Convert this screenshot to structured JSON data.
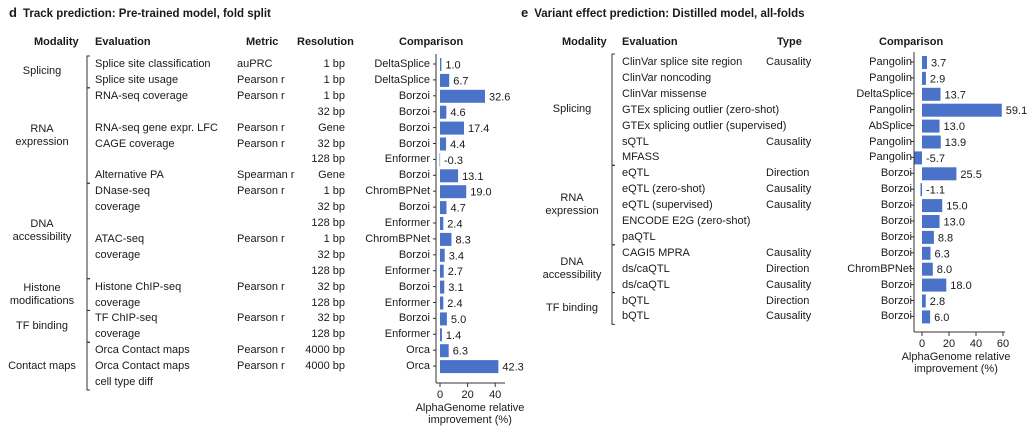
{
  "panel_d": {
    "letter": "d",
    "title": "Track prediction: Pre-trained model, fold split",
    "headers": {
      "modality": "Modality",
      "evaluation": "Evaluation",
      "metric": "Metric",
      "resolution": "Resolution",
      "comparison": "Comparison"
    },
    "modalities": [
      {
        "lines": [
          "Splicing"
        ]
      },
      {
        "lines": [
          "RNA",
          "expression"
        ]
      },
      {
        "lines": [
          "DNA",
          "accessibility"
        ]
      },
      {
        "lines": [
          "Histone",
          "modifications"
        ]
      },
      {
        "lines": [
          "TF binding"
        ]
      },
      {
        "lines": [
          "Contact maps"
        ]
      }
    ],
    "rows": [
      {
        "evaluation": "Splice site classification",
        "metric": "auPRC",
        "resolution": "1 bp",
        "model": "DeltaSplice",
        "value": 1.0,
        "label": "1.0"
      },
      {
        "evaluation": "Splice site usage",
        "metric": "Pearson r",
        "resolution": "1 bp",
        "model": "DeltaSplice",
        "value": 6.7,
        "label": "6.7"
      },
      {
        "evaluation": "RNA-seq coverage",
        "metric": "Pearson r",
        "resolution": "1 bp",
        "model": "Borzoi",
        "value": 32.6,
        "label": "32.6"
      },
      {
        "evaluation": "",
        "metric": "",
        "resolution": "32 bp",
        "model": "Borzoi",
        "value": 4.6,
        "label": "4.6"
      },
      {
        "evaluation": "RNA-seq gene expr. LFC",
        "metric": "Pearson r",
        "resolution": "Gene",
        "model": "Borzoi",
        "value": 17.4,
        "label": "17.4"
      },
      {
        "evaluation": "CAGE coverage",
        "metric": "Pearson r",
        "resolution": "32 bp",
        "model": "Borzoi",
        "value": 4.4,
        "label": "4.4"
      },
      {
        "evaluation": "",
        "metric": "",
        "resolution": "128 bp",
        "model": "Enformer",
        "value": -0.3,
        "label": "-0.3"
      },
      {
        "evaluation": "Alternative PA",
        "metric": "Spearman r",
        "resolution": "Gene",
        "model": "Borzoi",
        "value": 13.1,
        "label": "13.1"
      },
      {
        "evaluation": "DNase-seq",
        "metric": "Pearson r",
        "resolution": "1 bp",
        "model": "ChromBPNet",
        "value": 19.0,
        "label": "19.0"
      },
      {
        "evaluation": "coverage",
        "metric": "",
        "resolution": "32 bp",
        "model": "Borzoi",
        "value": 4.7,
        "label": "4.7"
      },
      {
        "evaluation": "",
        "metric": "",
        "resolution": "128 bp",
        "model": "Enformer",
        "value": 2.4,
        "label": "2.4"
      },
      {
        "evaluation": "ATAC-seq",
        "metric": "Pearson r",
        "resolution": "1 bp",
        "model": "ChromBPNet",
        "value": 8.3,
        "label": "8.3"
      },
      {
        "evaluation": "coverage",
        "metric": "",
        "resolution": "32 bp",
        "model": "Borzoi",
        "value": 3.4,
        "label": "3.4"
      },
      {
        "evaluation": "",
        "metric": "",
        "resolution": "128 bp",
        "model": "Enformer",
        "value": 2.7,
        "label": "2.7"
      },
      {
        "evaluation": "Histone ChIP-seq",
        "metric": "Pearson r",
        "resolution": "32 bp",
        "model": "Borzoi",
        "value": 3.1,
        "label": "3.1"
      },
      {
        "evaluation": "coverage",
        "metric": "",
        "resolution": "128 bp",
        "model": "Enformer",
        "value": 2.4,
        "label": "2.4"
      },
      {
        "evaluation": "TF ChIP-seq",
        "metric": "Pearson r",
        "resolution": "32 bp",
        "model": "Borzoi",
        "value": 5.0,
        "label": "5.0"
      },
      {
        "evaluation": "coverage",
        "metric": "",
        "resolution": "128 bp",
        "model": "Enformer",
        "value": 1.4,
        "label": "1.4"
      },
      {
        "evaluation": "Orca Contact maps",
        "metric": "Pearson r",
        "resolution": "4000 bp",
        "model": "Orca",
        "value": 6.3,
        "label": "6.3"
      },
      {
        "evaluation": "Orca Contact maps",
        "metric": "Pearson r",
        "resolution": "4000 bp",
        "model": "Orca",
        "value": 42.3,
        "label": "42.3"
      },
      {
        "evaluation": "cell type diff",
        "metric": "",
        "resolution": "",
        "model": "",
        "value": null,
        "label": ""
      }
    ],
    "xaxis": {
      "ticks": [
        "0",
        "20",
        "40"
      ],
      "label_lines": [
        "AlphaGenome relative",
        "improvement (%)"
      ]
    }
  },
  "panel_e": {
    "letter": "e",
    "title": "Variant effect prediction: Distilled model, all-folds",
    "headers": {
      "modality": "Modality",
      "evaluation": "Evaluation",
      "type": "Type",
      "comparison": "Comparison"
    },
    "modalities": [
      {
        "lines": [
          "Splicing"
        ]
      },
      {
        "lines": [
          "RNA",
          "expression"
        ]
      },
      {
        "lines": [
          "DNA",
          "accessibility"
        ]
      },
      {
        "lines": [
          "TF binding"
        ]
      }
    ],
    "rows": [
      {
        "evaluation": "ClinVar splice site region",
        "type": "Causality",
        "model": "Pangolin",
        "value": 3.7,
        "label": "3.7"
      },
      {
        "evaluation": "ClinVar noncoding",
        "type": "",
        "model": "Pangolin",
        "value": 2.9,
        "label": "2.9"
      },
      {
        "evaluation": "ClinVar missense",
        "type": "",
        "model": "DeltaSplice",
        "value": 13.7,
        "label": "13.7"
      },
      {
        "evaluation": "GTEx splicing outlier (zero-shot)",
        "type": "",
        "model": "Pangolin",
        "value": 59.1,
        "label": "59.1"
      },
      {
        "evaluation": "GTEx splicing outlier (supervised)",
        "type": "",
        "model": "AbSplice",
        "value": 13.0,
        "label": "13.0"
      },
      {
        "evaluation": "sQTL",
        "type": "Causality",
        "model": "Pangolin",
        "value": 13.9,
        "label": "13.9"
      },
      {
        "evaluation": "MFASS",
        "type": "",
        "model": "Pangolin",
        "value": -5.7,
        "label": "-5.7"
      },
      {
        "evaluation": "eQTL",
        "type": "Direction",
        "model": "Borzoi",
        "value": 25.5,
        "label": "25.5"
      },
      {
        "evaluation": "eQTL (zero-shot)",
        "type": "Causality",
        "model": "Borzoi",
        "value": -1.1,
        "label": "-1.1"
      },
      {
        "evaluation": "eQTL (supervised)",
        "type": "Causality",
        "model": "Borzoi",
        "value": 15.0,
        "label": "15.0"
      },
      {
        "evaluation": "ENCODE E2G (zero-shot)",
        "type": "",
        "model": "Borzoi",
        "value": 13.0,
        "label": "13.0"
      },
      {
        "evaluation": "paQTL",
        "type": "",
        "model": "Borzoi",
        "value": 8.8,
        "label": "8.8"
      },
      {
        "evaluation": "CAGI5 MPRA",
        "type": "Causality",
        "model": "Borzoi",
        "value": 6.3,
        "label": "6.3"
      },
      {
        "evaluation": "ds/caQTL",
        "type": "Direction",
        "model": "ChromBPNet",
        "value": 8.0,
        "label": "8.0"
      },
      {
        "evaluation": "ds/caQTL",
        "type": "Causality",
        "model": "Borzoi",
        "value": 18.0,
        "label": "18.0"
      },
      {
        "evaluation": "bQTL",
        "type": "Direction",
        "model": "Borzoi",
        "value": 2.8,
        "label": "2.8"
      },
      {
        "evaluation": "bQTL",
        "type": "Causality",
        "model": "Borzoi",
        "value": 6.0,
        "label": "6.0"
      }
    ],
    "xaxis": {
      "ticks": [
        "0",
        "20",
        "40",
        "60"
      ],
      "label_lines": [
        "AlphaGenome relative",
        "improvement (%)"
      ]
    }
  },
  "chart_data": [
    {
      "type": "bar",
      "orientation": "horizontal",
      "title": "Track prediction: Pre-trained model, fold split",
      "xlabel": "AlphaGenome relative improvement (%)",
      "xlim": [
        -1,
        45
      ],
      "categories": [
        "Splice site classification",
        "Splice site usage",
        "RNA-seq coverage (1 bp)",
        "RNA-seq coverage (32 bp)",
        "RNA-seq gene expr. LFC",
        "CAGE coverage (32 bp)",
        "CAGE coverage (128 bp)",
        "Alternative PA",
        "DNase-seq coverage (1 bp)",
        "DNase-seq coverage (32 bp)",
        "DNase-seq coverage (128 bp)",
        "ATAC-seq coverage (1 bp)",
        "ATAC-seq coverage (32 bp)",
        "ATAC-seq coverage (128 bp)",
        "Histone ChIP-seq coverage (32 bp)",
        "Histone ChIP-seq coverage (128 bp)",
        "TF ChIP-seq coverage (32 bp)",
        "TF ChIP-seq coverage (128 bp)",
        "Orca Contact maps",
        "Orca Contact maps cell type diff"
      ],
      "values": [
        1.0,
        6.7,
        32.6,
        4.6,
        17.4,
        4.4,
        -0.3,
        13.1,
        19.0,
        4.7,
        2.4,
        8.3,
        3.4,
        2.7,
        3.1,
        2.4,
        5.0,
        1.4,
        6.3,
        42.3
      ]
    },
    {
      "type": "bar",
      "orientation": "horizontal",
      "title": "Variant effect prediction: Distilled model, all-folds",
      "xlabel": "AlphaGenome relative improvement (%)",
      "xlim": [
        -7,
        62
      ],
      "categories": [
        "ClinVar splice site region",
        "ClinVar noncoding",
        "ClinVar missense",
        "GTEx splicing outlier (zero-shot)",
        "GTEx splicing outlier (supervised)",
        "sQTL",
        "MFASS",
        "eQTL (Direction)",
        "eQTL (zero-shot)",
        "eQTL (supervised)",
        "ENCODE E2G (zero-shot)",
        "paQTL",
        "CAGI5 MPRA",
        "ds/caQTL (Direction)",
        "ds/caQTL (Causality)",
        "bQTL (Direction)",
        "bQTL (Causality)"
      ],
      "values": [
        3.7,
        2.9,
        13.7,
        59.1,
        13.0,
        13.9,
        -5.7,
        25.5,
        -1.1,
        15.0,
        13.0,
        8.8,
        6.3,
        8.0,
        18.0,
        2.8,
        6.0
      ]
    }
  ]
}
